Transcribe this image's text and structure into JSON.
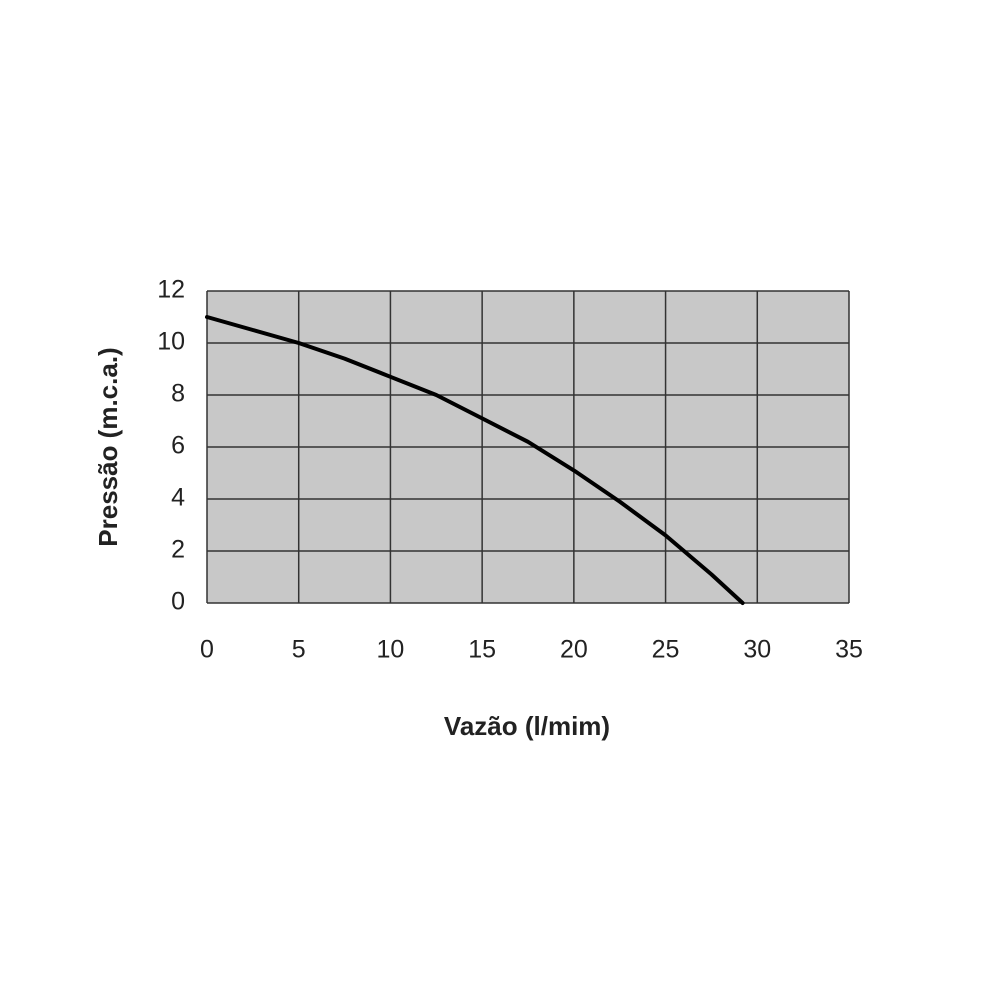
{
  "chart_data": {
    "type": "line",
    "xlabel": "Vazão (l/mim)",
    "ylabel": "Pressão (m.c.a.)",
    "x": [
      0,
      2.5,
      5,
      7.5,
      10,
      12.5,
      15,
      17.5,
      20,
      22.5,
      25,
      27.5,
      29.2
    ],
    "values": [
      11,
      10.5,
      10,
      9.4,
      8.7,
      8.0,
      7.1,
      6.2,
      5.1,
      3.9,
      2.6,
      1.1,
      0
    ],
    "color": "#000000",
    "xlim": [
      0,
      35
    ],
    "xticks": [
      0,
      5,
      10,
      15,
      20,
      25,
      30,
      35
    ],
    "ylim": [
      0,
      12
    ],
    "yticks": [
      0,
      2,
      4,
      6,
      8,
      10,
      12
    ],
    "grid": true
  }
}
